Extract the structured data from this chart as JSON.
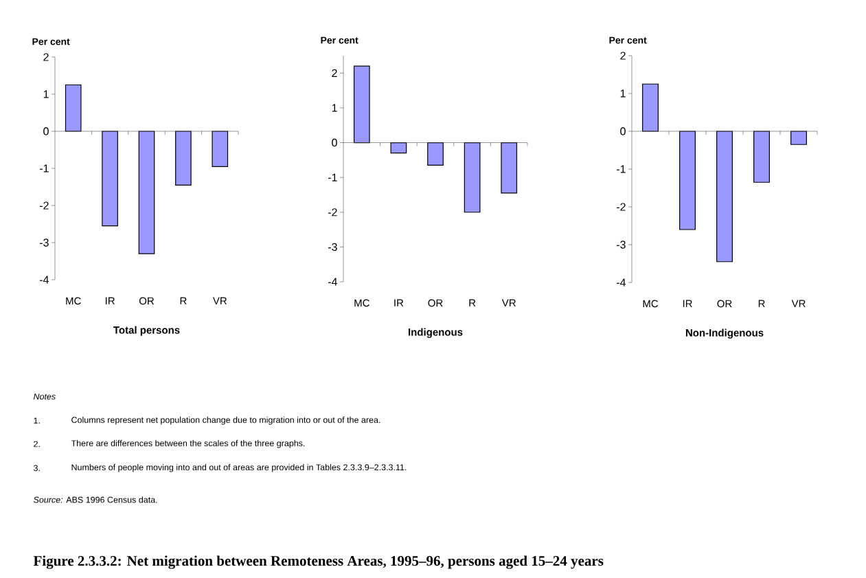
{
  "chart_data": [
    {
      "type": "bar",
      "title": "Total persons",
      "ylabel": "Per cent",
      "categories": [
        "MC",
        "IR",
        "OR",
        "R",
        "VR"
      ],
      "values": [
        1.25,
        -2.55,
        -3.3,
        -1.45,
        -0.95
      ],
      "color": "#9999ff",
      "ylim": [
        -4,
        2
      ],
      "yticks": [
        -4,
        -3,
        -2,
        -1,
        0,
        1,
        2
      ]
    },
    {
      "type": "bar",
      "title": "Indigenous",
      "ylabel": "Per cent",
      "categories": [
        "MC",
        "IR",
        "OR",
        "R",
        "VR"
      ],
      "values": [
        2.2,
        -0.3,
        -0.65,
        -2.0,
        -1.45
      ],
      "color": "#9999ff",
      "ylim": [
        -4,
        2.5
      ],
      "yticks": [
        -4,
        -3,
        -2,
        -1,
        0,
        1,
        2
      ]
    },
    {
      "type": "bar",
      "title": "Non-Indigenous",
      "ylabel": "Per cent",
      "categories": [
        "MC",
        "IR",
        "OR",
        "R",
        "VR"
      ],
      "values": [
        1.25,
        -2.6,
        -3.45,
        -1.35,
        -0.35
      ],
      "color": "#9999ff",
      "ylim": [
        -4,
        2
      ],
      "yticks": [
        -4,
        -3,
        -2,
        -1,
        0,
        1,
        2
      ]
    },
    {
      "type": "other",
      "title": "Figure 2.3.3.2: Net migration between Remoteness Areas, 1995–96, persons aged 15–24 years",
      "annotations": [
        "*Notes*",
        "1.",
        "Columns represent net population change due to migration into or out of the area.",
        "2.",
        "There are differences between the scales of the three graphs.",
        "3.",
        "Numbers of people moving into and out of areas are provided in Tables 2.3.3.9–2.3.3.11.",
        "*Source:* ABS 1996 Census data."
      ]
    }
  ]
}
